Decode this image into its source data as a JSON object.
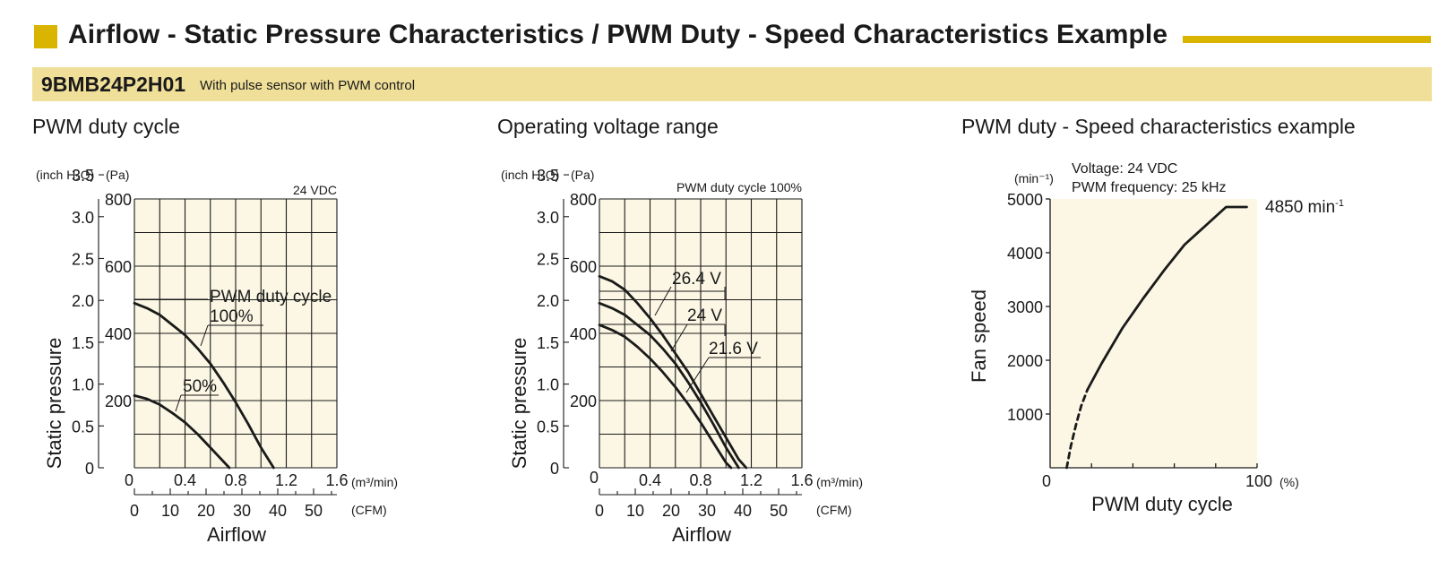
{
  "header": {
    "title": "Airflow - Static Pressure Characteristics / PWM Duty - Speed Characteristics Example",
    "model": "9BMB24P2H01",
    "model_description": "With pulse sensor with PWM control"
  },
  "colors": {
    "accent": "#d9b400",
    "band": "#efdf99",
    "plot_bg": "#fbf7e4",
    "line": "#1a1a1a"
  },
  "sections": [
    {
      "title": "PWM duty cycle"
    },
    {
      "title": "Operating voltage range"
    },
    {
      "title": "PWM duty - Speed characteristics example"
    }
  ],
  "chart_data": [
    {
      "type": "line",
      "unit_label_left": "(inch H₂O)",
      "unit_label_pa": "(Pa)",
      "condition": "24 VDC",
      "ylabel": "Static pressure",
      "xlabel": "Airflow",
      "x_unit_m3": "(m³/min)",
      "x_unit_cfm": "(CFM)",
      "xlim": [
        0,
        1.6
      ],
      "ylim": [
        0,
        800
      ],
      "x_ticks": [
        "0.4",
        "0.8",
        "1.2",
        "1.6"
      ],
      "x_origin": "0",
      "y_ticks_pa": [
        "200",
        "400",
        "600",
        "800"
      ],
      "y_ticks_inch": [
        "0",
        "0.5",
        "1.0",
        "1.5",
        "2.0",
        "2.5",
        "3.0",
        "3.5"
      ],
      "cfm_ticks": [
        "0",
        "10",
        "20",
        "30",
        "40",
        "50"
      ],
      "legend_title": "PWM duty cycle",
      "series": [
        {
          "name": "100%",
          "x": [
            0,
            0.1,
            0.2,
            0.3,
            0.4,
            0.5,
            0.6,
            0.7,
            0.8,
            0.9,
            1.0,
            1.1
          ],
          "y": [
            490,
            475,
            455,
            425,
            395,
            355,
            310,
            255,
            195,
            130,
            60,
            0
          ]
        },
        {
          "name": "50%",
          "x": [
            0,
            0.1,
            0.2,
            0.3,
            0.4,
            0.5,
            0.6,
            0.7,
            0.75
          ],
          "y": [
            215,
            205,
            188,
            163,
            135,
            100,
            60,
            20,
            0
          ]
        }
      ]
    },
    {
      "type": "line",
      "unit_label_left": "(inch H₂O)",
      "unit_label_pa": "(Pa)",
      "condition": "PWM duty cycle 100%",
      "ylabel": "Static pressure",
      "xlabel": "Airflow",
      "x_unit_m3": "(m³/min)",
      "x_unit_cfm": "(CFM)",
      "xlim": [
        0,
        1.6
      ],
      "ylim": [
        0,
        800
      ],
      "x_ticks": [
        "0.4",
        "0.8",
        "1.2",
        "1.6"
      ],
      "x_origin": "0",
      "y_ticks_pa": [
        "200",
        "400",
        "600",
        "800"
      ],
      "y_ticks_inch": [
        "0",
        "0.5",
        "1.0",
        "1.5",
        "2.0",
        "2.5",
        "3.0",
        "3.5"
      ],
      "cfm_ticks": [
        "0",
        "10",
        "20",
        "30",
        "40",
        "50"
      ],
      "series": [
        {
          "name": "26.4 V",
          "x": [
            0,
            0.1,
            0.2,
            0.3,
            0.4,
            0.5,
            0.6,
            0.7,
            0.8,
            0.9,
            1.0,
            1.1,
            1.16
          ],
          "y": [
            570,
            555,
            530,
            490,
            445,
            395,
            340,
            285,
            220,
            155,
            90,
            25,
            0
          ]
        },
        {
          "name": "24 V",
          "x": [
            0,
            0.1,
            0.2,
            0.3,
            0.4,
            0.5,
            0.6,
            0.7,
            0.8,
            0.9,
            1.0,
            1.1
          ],
          "y": [
            490,
            475,
            455,
            425,
            395,
            355,
            310,
            255,
            195,
            130,
            60,
            0
          ]
        },
        {
          "name": "21.6 V",
          "x": [
            0,
            0.1,
            0.2,
            0.3,
            0.4,
            0.5,
            0.6,
            0.7,
            0.8,
            0.9,
            1.0,
            1.04
          ],
          "y": [
            425,
            410,
            390,
            360,
            325,
            285,
            240,
            190,
            135,
            75,
            15,
            0
          ]
        }
      ]
    },
    {
      "type": "line",
      "condition_lines": [
        "Voltage: 24 VDC",
        "PWM frequency: 25 kHz"
      ],
      "y_unit": "(min⁻¹)",
      "ylabel": "Fan speed",
      "xlabel": "PWM duty cycle",
      "x_unit": "(%)",
      "xlim": [
        0,
        100
      ],
      "ylim": [
        0,
        5000
      ],
      "x_tick_labels": {
        "start": "0",
        "end": "100"
      },
      "y_ticks": [
        "1000",
        "2000",
        "3000",
        "4000",
        "5000"
      ],
      "max_label": "4850 min",
      "max_label_sup": "-1",
      "series": [
        {
          "name": "dashed",
          "x": [
            8,
            10,
            12.5,
            15,
            18
          ],
          "y": [
            0,
            400,
            800,
            1150,
            1450
          ]
        },
        {
          "name": "solid",
          "x": [
            18,
            25,
            35,
            45,
            55,
            65,
            75,
            85,
            90,
            95
          ],
          "y": [
            1450,
            1950,
            2600,
            3150,
            3670,
            4150,
            4500,
            4850,
            4850,
            4850
          ]
        }
      ]
    }
  ]
}
